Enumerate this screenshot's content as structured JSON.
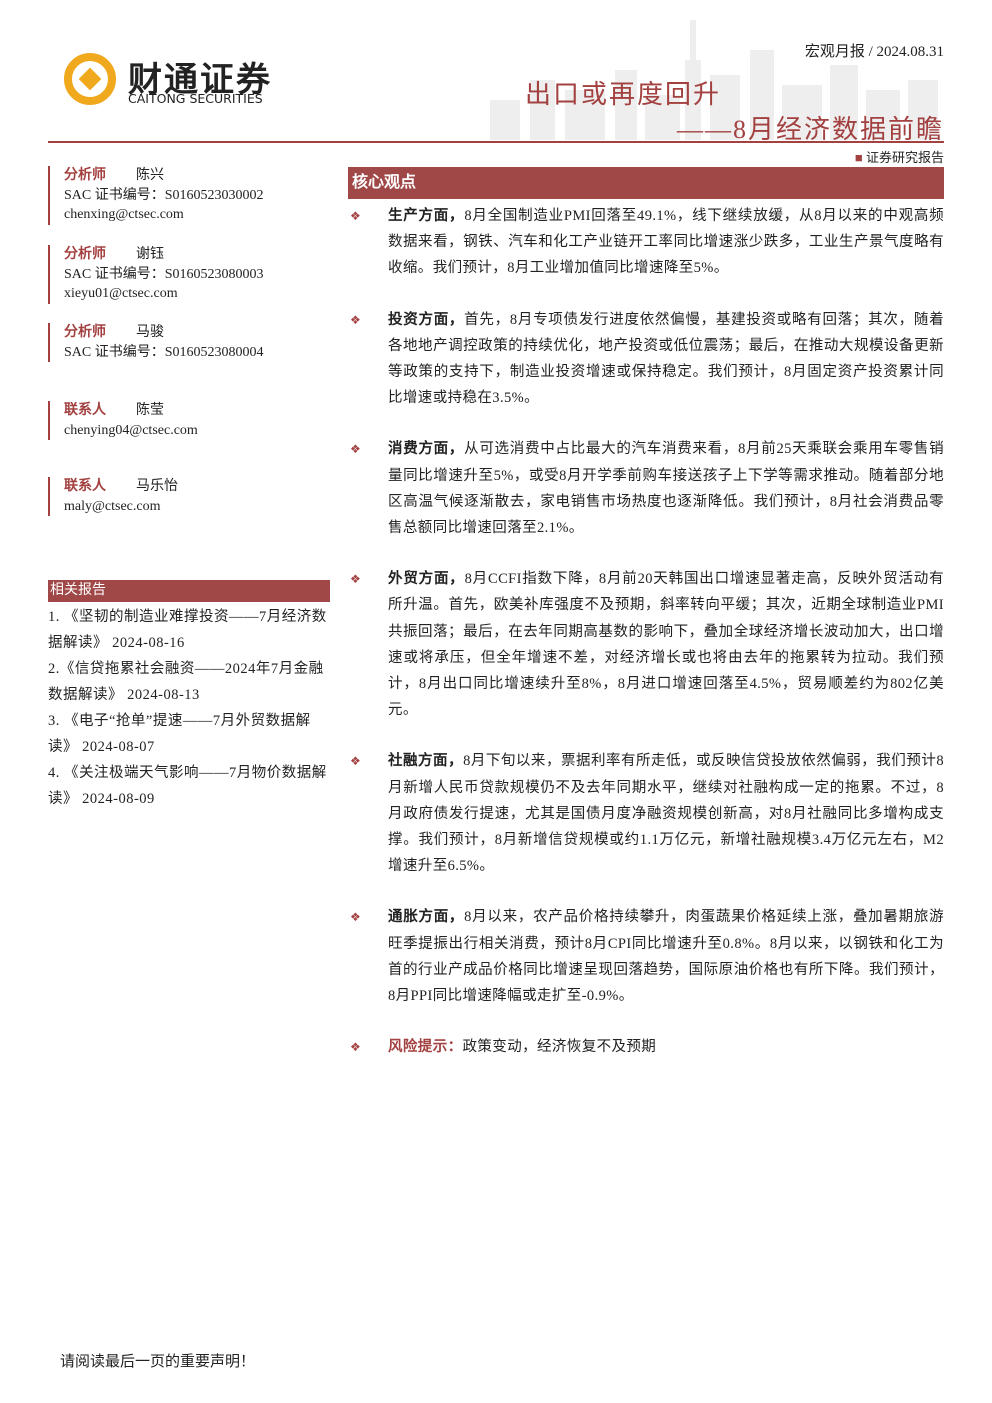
{
  "header": {
    "report_tag": "宏观月报 / 2024.08.31",
    "logo_cn": "财通证券",
    "logo_en": "CAITONG SECURITIES",
    "title": "出口或再度回升",
    "subtitle": "——8月经济数据前瞻",
    "report_kind": "证券研究报告"
  },
  "contacts": [
    {
      "role": "分析师",
      "name": "陈兴",
      "sac": "SAC 证书编号：S0160523030002",
      "email": "chenxing@ctsec.com"
    },
    {
      "role": "分析师",
      "name": "谢钰",
      "sac": "SAC 证书编号：S0160523080003",
      "email": "xieyu01@ctsec.com"
    },
    {
      "role": "分析师",
      "name": "马骏",
      "sac": "SAC 证书编号：S0160523080004"
    },
    {
      "role": "联系人",
      "name": "陈莹",
      "email": "chenying04@ctsec.com"
    },
    {
      "role": "联系人",
      "name": "马乐怡",
      "email": "maly@ctsec.com"
    }
  ],
  "related": {
    "heading": "相关报告",
    "items": [
      "1. 《坚韧的制造业难撑投资——7月经济数据解读》 2024-08-16",
      "2.《信贷拖累社会融资——2024年7月金融数据解读》 2024-08-13",
      "3. 《电子“抢单”提速——7月外贸数据解读》 2024-08-07",
      "4. 《关注极端天气影响——7月物价数据解读》 2024-08-09"
    ]
  },
  "core": {
    "heading": "核心观点",
    "points": [
      {
        "label": "生产方面，",
        "text": "8月全国制造业PMI回落至49.1%，线下继续放缓，从8月以来的中观高频数据来看，钢铁、汽车和化工产业链开工率同比增速涨少跌多，工业生产景气度略有收缩。我们预计，8月工业增加值同比增速降至5%。"
      },
      {
        "label": "投资方面，",
        "text": "首先，8月专项债发行进度依然偏慢，基建投资或略有回落；其次，随着各地地产调控政策的持续优化，地产投资或低位震荡；最后，在推动大规模设备更新等政策的支持下，制造业投资增速或保持稳定。我们预计，8月固定资产投资累计同比增速或持稳在3.5%。"
      },
      {
        "label": "消费方面，",
        "text": "从可选消费中占比最大的汽车消费来看，8月前25天乘联会乘用车零售销量同比增速升至5%，或受8月开学季前购车接送孩子上下学等需求推动。随着部分地区高温气候逐渐散去，家电销售市场热度也逐渐降低。我们预计，8月社会消费品零售总额同比增速回落至2.1%。"
      },
      {
        "label": "外贸方面，",
        "text": "8月CCFI指数下降，8月前20天韩国出口增速显著走高，反映外贸活动有所升温。首先，欧美补库强度不及预期，斜率转向平缓；其次，近期全球制造业PMI共振回落；最后，在去年同期高基数的影响下，叠加全球经济增长波动加大，出口增速或将承压，但全年增速不差，对经济增长或也将由去年的拖累转为拉动。我们预计，8月出口同比增速续升至8%，8月进口增速回落至4.5%，贸易顺差约为802亿美元。"
      },
      {
        "label": "社融方面，",
        "text": "8月下旬以来，票据利率有所走低，或反映信贷投放依然偏弱，我们预计8月新增人民币贷款规模仍不及去年同期水平，继续对社融构成一定的拖累。不过，8月政府债发行提速，尤其是国债月度净融资规模创新高，对8月社融同比多增构成支撑。我们预计，8月新增信贷规模或约1.1万亿元，新增社融规模3.4万亿元左右，M2增速升至6.5%。"
      },
      {
        "label": "通胀方面，",
        "text": "8月以来，农产品价格持续攀升，肉蛋蔬果价格延续上涨，叠加暑期旅游旺季提振出行相关消费，预计8月CPI同比增速升至0.8%。8月以来，以钢铁和化工为首的行业产成品价格同比增速呈现回落趋势，国际原油价格也有所下降。我们预计，8月PPI同比增速降幅或走扩至-0.9%。"
      },
      {
        "label": "风险提示：",
        "text": "政策变动，经济恢复不及预期"
      }
    ]
  },
  "footer": "请阅读最后一页的重要声明！"
}
